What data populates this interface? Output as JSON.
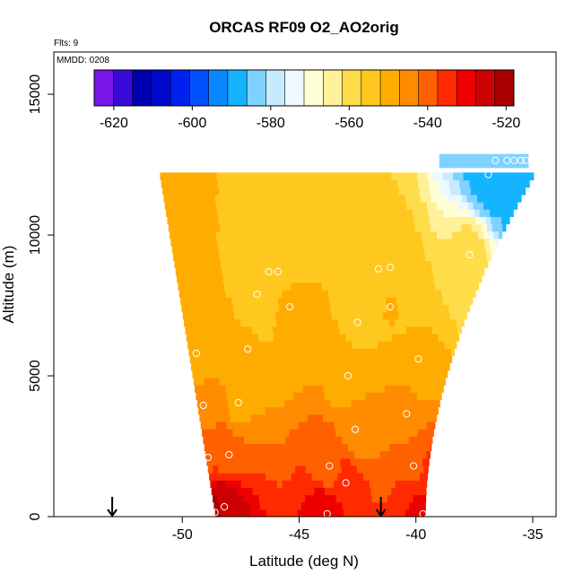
{
  "chart_data": {
    "type": "heatmap",
    "title": "ORCAS RF09 O2_AO2orig",
    "flights_label": "Flts: 9",
    "date_label": "MMDD: 0208",
    "xlabel": "Latitude (deg N)",
    "ylabel": "Altitude (m)",
    "xlim": [
      -55.5,
      -34
    ],
    "ylim": [
      0,
      16500
    ],
    "x_ticks": [
      -50,
      -45,
      -40,
      -35
    ],
    "y_ticks": [
      0,
      5000,
      10000,
      15000
    ],
    "colorbar": {
      "range": [
        -625,
        -518
      ],
      "ticks": [
        -620,
        -600,
        -580,
        -560,
        -540,
        -520
      ],
      "colors": [
        "#7a16e8",
        "#3a0ad8",
        "#0000b0",
        "#0008cc",
        "#0020ee",
        "#0050ff",
        "#0a88ff",
        "#14b4ff",
        "#7fd2ff",
        "#c8eaff",
        "#eef8ff",
        "#ffffd6",
        "#fff09a",
        "#ffdc4a",
        "#ffc81e",
        "#ffac00",
        "#ff8c00",
        "#ff6000",
        "#ff2a00",
        "#ee0000",
        "#cc0000",
        "#a80000"
      ]
    },
    "field": {
      "x_range": [
        -51,
        -35.2
      ],
      "y_range": [
        0,
        12700
      ],
      "bottom_left_lat": -48.6,
      "bottom_right_lat": -39.6,
      "top_left_lat": -51.0,
      "top_right_lat": -35.2,
      "top_altitude": 12200,
      "high_leg": {
        "from_lat": -39.0,
        "to_lat": -35.2,
        "altitude": 12700,
        "value": -585
      }
    },
    "observations": [
      {
        "lat": -48.6,
        "alt": 150,
        "value": -522
      },
      {
        "lat": -48.2,
        "alt": 350,
        "value": -523
      },
      {
        "lat": -43.8,
        "alt": 100,
        "value": -528
      },
      {
        "lat": -39.7,
        "alt": 100,
        "value": -530
      },
      {
        "lat": -39.4,
        "alt": 950,
        "value": -533
      },
      {
        "lat": -43.0,
        "alt": 1200,
        "value": -535
      },
      {
        "lat": -40.1,
        "alt": 1800,
        "value": -538
      },
      {
        "lat": -43.7,
        "alt": 1800,
        "value": -540
      },
      {
        "lat": -48.9,
        "alt": 2100,
        "value": -538
      },
      {
        "lat": -48.0,
        "alt": 2200,
        "value": -540
      },
      {
        "lat": -42.6,
        "alt": 3100,
        "value": -545
      },
      {
        "lat": -40.4,
        "alt": 3650,
        "value": -546
      },
      {
        "lat": -47.6,
        "alt": 4050,
        "value": -548
      },
      {
        "lat": -49.1,
        "alt": 3950,
        "value": -546
      },
      {
        "lat": -42.9,
        "alt": 5000,
        "value": -550
      },
      {
        "lat": -39.9,
        "alt": 5600,
        "value": -552
      },
      {
        "lat": -49.4,
        "alt": 5800,
        "value": -551
      },
      {
        "lat": -47.2,
        "alt": 5950,
        "value": -552
      },
      {
        "lat": -42.5,
        "alt": 6900,
        "value": -553
      },
      {
        "lat": -41.1,
        "alt": 7450,
        "value": -552
      },
      {
        "lat": -45.4,
        "alt": 7450,
        "value": -551
      },
      {
        "lat": -46.8,
        "alt": 7900,
        "value": -553
      },
      {
        "lat": -46.3,
        "alt": 8700,
        "value": -555
      },
      {
        "lat": -45.9,
        "alt": 8700,
        "value": -555
      },
      {
        "lat": -41.6,
        "alt": 8800,
        "value": -556
      },
      {
        "lat": -41.1,
        "alt": 8850,
        "value": -556
      },
      {
        "lat": -37.7,
        "alt": 9300,
        "value": -560
      },
      {
        "lat": -36.9,
        "alt": 12150,
        "value": -588
      },
      {
        "lat": -36.6,
        "alt": 12650,
        "value": -590
      },
      {
        "lat": -36.1,
        "alt": 12650,
        "value": -590
      },
      {
        "lat": -35.8,
        "alt": 12650,
        "value": -590
      },
      {
        "lat": -35.5,
        "alt": 12650,
        "value": -590
      },
      {
        "lat": -35.3,
        "alt": 12650,
        "value": -590
      }
    ],
    "markers": [
      {
        "type": "arrow-down",
        "lat": -53.0
      },
      {
        "type": "arrow-down",
        "lat": -41.5
      }
    ]
  }
}
